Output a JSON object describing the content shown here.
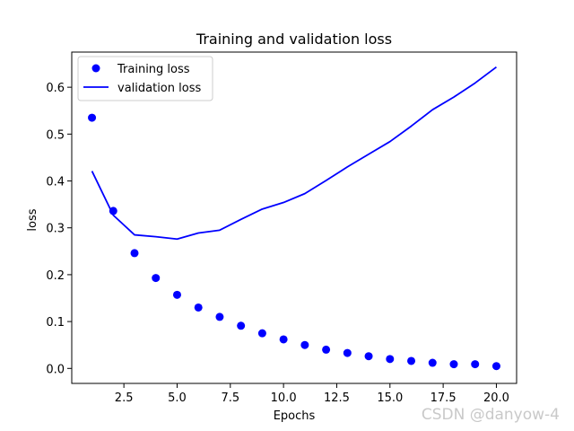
{
  "chart_data": {
    "type": "line",
    "title": "Training and validation loss",
    "xlabel": "Epochs",
    "ylabel": "loss",
    "xlim": [
      0.05,
      20.95
    ],
    "ylim": [
      -0.032,
      0.675
    ],
    "x_ticks": [
      2.5,
      5.0,
      7.5,
      10.0,
      12.5,
      15.0,
      17.5,
      20.0
    ],
    "x_tick_labels": [
      "2.5",
      "5.0",
      "7.5",
      "10.0",
      "12.5",
      "15.0",
      "17.5",
      "20.0"
    ],
    "y_ticks": [
      0.0,
      0.1,
      0.2,
      0.3,
      0.4,
      0.5,
      0.6
    ],
    "y_tick_labels": [
      "0.0",
      "0.1",
      "0.2",
      "0.3",
      "0.4",
      "0.5",
      "0.6"
    ],
    "grid": false,
    "legend_position": "top-left",
    "x": [
      1,
      2,
      3,
      4,
      5,
      6,
      7,
      8,
      9,
      10,
      11,
      12,
      13,
      14,
      15,
      16,
      17,
      18,
      19,
      20
    ],
    "series": [
      {
        "name": "Training loss",
        "style": "markers",
        "color": "#0000ff",
        "values": [
          0.535,
          0.336,
          0.246,
          0.193,
          0.157,
          0.13,
          0.11,
          0.091,
          0.075,
          0.062,
          0.05,
          0.04,
          0.033,
          0.026,
          0.02,
          0.016,
          0.012,
          0.009,
          0.009,
          0.005
        ]
      },
      {
        "name": "validation loss",
        "style": "line",
        "color": "#0000ff",
        "values": [
          0.421,
          0.327,
          0.285,
          0.281,
          0.276,
          0.289,
          0.295,
          0.318,
          0.34,
          0.354,
          0.373,
          0.401,
          0.43,
          0.457,
          0.484,
          0.517,
          0.552,
          0.579,
          0.609,
          0.643
        ]
      }
    ]
  },
  "watermark": "CSDN @danyow-4"
}
